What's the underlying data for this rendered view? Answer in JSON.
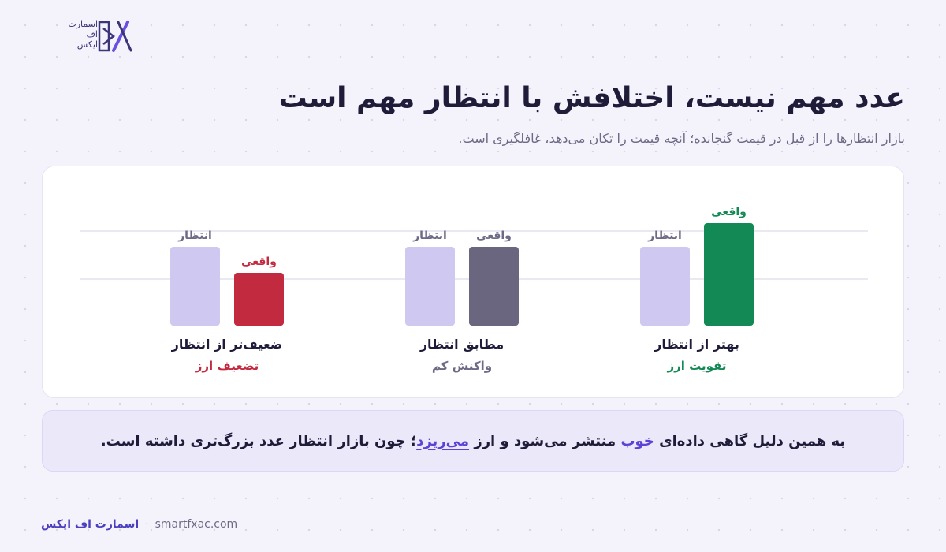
{
  "logo": {
    "line1": "اسمارت",
    "line2": "اف",
    "line3": "ایکس"
  },
  "title": "عدد مهم نیست، اختلافش با انتظار مهم است",
  "subtitle": "بازار انتظارها را از قبل در قیمت گنجانده؛ آنچه قیمت را تکان می‌دهد، غافلگیری است.",
  "chart_data": {
    "type": "bar",
    "categories": [
      "بهتر از انتظار",
      "مطابق انتظار",
      "ضعیف‌تر از انتظار"
    ],
    "subcategories": [
      "تقویت ارز",
      "واکنش کم",
      "تضعیف ارز"
    ],
    "sub_colors": [
      "#138a55",
      "#6e6a86",
      "#c22a40"
    ],
    "series": [
      {
        "name": "انتظار",
        "values": [
          100,
          100,
          100
        ],
        "color": "#cfc9f1"
      },
      {
        "name": "واقعی",
        "values": [
          130,
          100,
          67
        ],
        "colors": [
          "#138a55",
          "#6b6680",
          "#c22a40"
        ]
      }
    ],
    "label_colors": {
      "expected": "#6e6a86",
      "actual": [
        "#138a55",
        "#6e6a86",
        "#c22a40"
      ]
    },
    "ylim": [
      0,
      130
    ],
    "xlabel": "",
    "ylabel": ""
  },
  "note": {
    "part1": "به همین دلیل گاهی داده‌ای",
    "good": "خوب",
    "part2": "منتشر می‌شود و ارز",
    "drops": "می‌ریزد",
    "part3": "؛ چون بازار انتظار عدد بزرگ‌تری داشته است."
  },
  "footer": {
    "brand": "اسمارت اف ایکس",
    "site": "smartfxac.com"
  }
}
